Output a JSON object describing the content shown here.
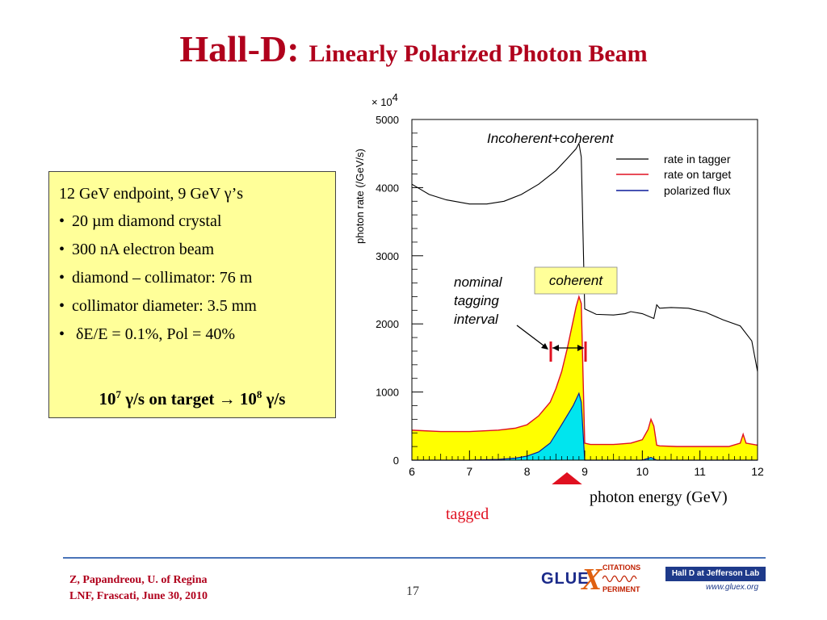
{
  "title": {
    "main": "Hall-D:",
    "sub": "Linearly Polarized Photon Beam"
  },
  "infobox": {
    "heading": "12 GeV endpoint, 9 GeV γ’s",
    "bullets": [
      "20 µm diamond crystal",
      "300 nA electron beam",
      "diamond – collimator: 76 m",
      "collimator diameter: 3.5 mm",
      " δE/E = 0.1%,  Pol = 40%"
    ],
    "rate": {
      "base1": "10",
      "exp1": "7",
      "mid": " γ/s on target → ",
      "base2": "10",
      "exp2": "8",
      "end": " γ/s"
    }
  },
  "plot": {
    "multiplier": "× 10",
    "multiplier_exp": "4",
    "ylabel": "photon rate (/GeV/s)",
    "xlabel": "photon energy (GeV)",
    "annotation_top": "Incoherent+coherent",
    "annotation_coherent": "coherent",
    "annotation_interval": [
      "nominal",
      "tagging",
      "interval"
    ],
    "tagged_label": "tagged",
    "legend": [
      {
        "label": "rate in tagger",
        "color": "#000000"
      },
      {
        "label": "rate on target",
        "color": "#e01020"
      },
      {
        "label": "polarized flux",
        "color": "#0a1a9a"
      }
    ],
    "colors": {
      "fill_target": "#ffff00",
      "fill_polarized": "#00e5ee",
      "coherent_box": "#ffff99",
      "arrow": "#e01020"
    }
  },
  "chart_data": {
    "type": "area",
    "xlabel": "photon energy (GeV)",
    "ylabel": "photon rate (/GeV/s)",
    "y_multiplier": "× 10^4",
    "xlim": [
      6,
      12
    ],
    "ylim": [
      0,
      5000
    ],
    "xticks": [
      "6",
      "7",
      "8",
      "9",
      "10",
      "11",
      "12"
    ],
    "yticks": [
      "0",
      "1000",
      "2000",
      "3000",
      "4000",
      "5000"
    ],
    "series": [
      {
        "name": "rate in tagger",
        "x": [
          6.0,
          6.3,
          6.6,
          7.0,
          7.3,
          7.6,
          7.9,
          8.2,
          8.5,
          8.7,
          8.85,
          8.9,
          8.94,
          9.0,
          9.2,
          9.5,
          9.7,
          9.8,
          10.0,
          10.2,
          10.25,
          10.3,
          10.5,
          10.8,
          11.1,
          11.4,
          11.7,
          11.9,
          12.0
        ],
        "y": [
          4050,
          3900,
          3820,
          3760,
          3760,
          3800,
          3900,
          4050,
          4250,
          4430,
          4570,
          4650,
          4450,
          2220,
          2140,
          2130,
          2150,
          2180,
          2150,
          2080,
          2280,
          2230,
          2240,
          2230,
          2170,
          2060,
          1970,
          1750,
          1300
        ]
      },
      {
        "name": "rate on target",
        "x": [
          6.0,
          6.5,
          7.0,
          7.5,
          7.8,
          8.0,
          8.2,
          8.4,
          8.5,
          8.6,
          8.7,
          8.8,
          8.85,
          8.9,
          8.94,
          9.0,
          9.1,
          9.5,
          9.8,
          10.0,
          10.1,
          10.15,
          10.2,
          10.25,
          10.3,
          10.6,
          11.0,
          11.5,
          11.7,
          11.75,
          11.8,
          12.0
        ],
        "y": [
          440,
          420,
          420,
          440,
          470,
          520,
          650,
          850,
          1050,
          1300,
          1650,
          2050,
          2250,
          2400,
          2300,
          250,
          230,
          230,
          250,
          300,
          450,
          600,
          500,
          220,
          210,
          200,
          200,
          200,
          250,
          380,
          250,
          220
        ]
      },
      {
        "name": "polarized flux",
        "x": [
          6.0,
          6.5,
          7.0,
          7.5,
          7.8,
          8.0,
          8.2,
          8.4,
          8.6,
          8.8,
          8.9,
          8.94,
          9.0,
          9.1,
          9.5,
          10.0,
          10.15,
          10.25,
          10.5,
          12.0
        ],
        "y": [
          0,
          0,
          0,
          10,
          30,
          60,
          120,
          250,
          520,
          800,
          980,
          850,
          0,
          0,
          0,
          0,
          40,
          0,
          0,
          0
        ]
      }
    ],
    "legend_position": "top-right",
    "grid": false
  },
  "footer": {
    "author": "Z, Papandreou, U. of Regina",
    "venue": "LNF, Frascati, June 30, 2010",
    "page": "17",
    "logo_gluex": {
      "glue": "GLUE",
      "x": "X",
      "top": "CITATIONS",
      "bottom": "PERIMENT"
    },
    "logo_halld": {
      "banner": "Hall D at Jefferson Lab",
      "url": "www.gluex.org"
    }
  }
}
